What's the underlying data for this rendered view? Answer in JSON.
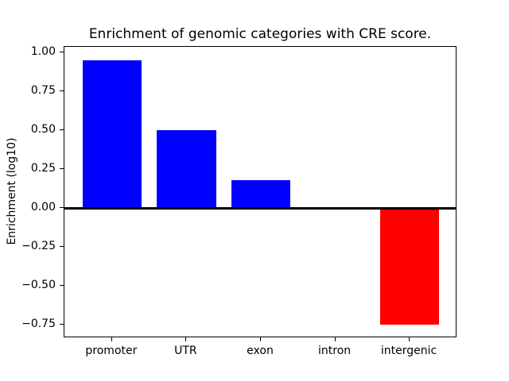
{
  "chart_data": {
    "type": "bar",
    "title": "Enrichment of genomic categories with CRE score.",
    "ylabel": "Enrichment (log10)",
    "xlabel": "",
    "categories": [
      "promoter",
      "UTR",
      "exon",
      "intron",
      "intergenic"
    ],
    "values": [
      0.95,
      0.5,
      0.18,
      0.0,
      -0.75
    ],
    "bar_colors": [
      "#0000ff",
      "#0000ff",
      "#0000ff",
      "#0000ff",
      "#ff0000"
    ],
    "positive_color": "#0000ff",
    "negative_color": "#ff0000",
    "yticks": [
      1.0,
      0.75,
      0.5,
      0.25,
      0.0,
      -0.25,
      -0.5,
      -0.75
    ],
    "ytick_labels": [
      "1.00",
      "0.75",
      "0.50",
      "0.25",
      "0.00",
      "−0.25",
      "−0.50",
      "−0.75"
    ],
    "ylim": [
      -0.835,
      1.035
    ],
    "xlim": [
      -0.64,
      4.64
    ],
    "bar_width": 0.8,
    "zero_line_color": "#000000",
    "axis_color": "#000000",
    "background_color": "#ffffff",
    "grid": false,
    "legend_position": "none"
  }
}
